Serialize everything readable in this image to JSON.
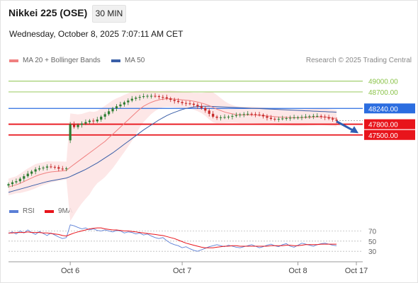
{
  "header": {
    "title": "Nikkei 225 (OSE)",
    "timeframe": "30 MIN",
    "datetime": "Wednesday, October 8, 2025 7:07:11 AM CET"
  },
  "legend": {
    "ma20": "MA 20 + Bollinger Bands",
    "ma50": "MA 50",
    "copyright": "Research © 2025 Trading Central",
    "rsi": "RSI",
    "ma9": "9MA"
  },
  "colors": {
    "ma20": "#f08080",
    "bollinger_fill": "#fde4e4",
    "ma50": "#3a5fa8",
    "resistance": "#8bc34a",
    "pivot": "#2b6de0",
    "support": "#e8141b",
    "rsi": "#5b7fd6",
    "ma9": "#e8141b",
    "candle_up": "#2e7d32",
    "candle_down": "#c62828"
  },
  "chart_data": [
    {
      "type": "candlestick",
      "title": "Nikkei 225 (OSE)",
      "timeframe": "30 MIN",
      "ylim": [
        45700,
        49350
      ],
      "x_ticks": [
        "Oct 6",
        "Oct 7",
        "Oct 8",
        "Oct 17"
      ],
      "levels": [
        {
          "value": 49000,
          "label": "49000.00",
          "kind": "resistance"
        },
        {
          "value": 48700,
          "label": "48700.00",
          "kind": "resistance"
        },
        {
          "value": 48240,
          "label": "48240.00",
          "kind": "pivot"
        },
        {
          "value": 47800,
          "label": "47800.00",
          "kind": "support"
        },
        {
          "value": 47500,
          "label": "47500.00",
          "kind": "support"
        }
      ],
      "forecast": {
        "direction": "down",
        "from": 47880,
        "to": 47550
      },
      "close": [
        46130,
        46180,
        46210,
        46280,
        46350,
        46420,
        46480,
        46540,
        46570,
        46590,
        46620,
        46610,
        46600,
        46560,
        46550,
        46570,
        47800,
        47720,
        47780,
        47820,
        47860,
        47900,
        47880,
        47930,
        48010,
        48080,
        48160,
        48240,
        48300,
        48350,
        48410,
        48460,
        48510,
        48540,
        48560,
        48580,
        48590,
        48590,
        48580,
        48560,
        48550,
        48520,
        48480,
        48450,
        48420,
        48390,
        48380,
        48370,
        48340,
        48300,
        48250,
        48180,
        48090,
        48010,
        47980,
        47990,
        48000,
        48010,
        48030,
        48050,
        48070,
        48080,
        48090,
        48080,
        48070,
        48060,
        48020,
        47980,
        47950,
        47940,
        47950,
        47960,
        47970,
        47980,
        47990,
        47990,
        48000,
        48010,
        48020,
        48030,
        48030,
        48010,
        47990,
        47960,
        47930,
        47900
      ],
      "ma20": [
        46050,
        46080,
        46110,
        46150,
        46200,
        46250,
        46300,
        46350,
        46390,
        46420,
        46450,
        46470,
        46480,
        46490,
        46500,
        46510,
        46600,
        46680,
        46760,
        46840,
        46920,
        47000,
        47080,
        47160,
        47240,
        47320,
        47420,
        47520,
        47620,
        47720,
        47820,
        47920,
        48020,
        48120,
        48220,
        48300,
        48360,
        48410,
        48450,
        48480,
        48500,
        48510,
        48510,
        48500,
        48490,
        48480,
        48470,
        48460,
        48440,
        48420,
        48390,
        48360,
        48320,
        48270,
        48220,
        48180,
        48140,
        48110,
        48090,
        48070,
        48060,
        48060,
        48060,
        48060,
        48055,
        48050,
        48040,
        48030,
        48020,
        48010,
        48000,
        47995,
        47990,
        47985,
        47980,
        47980,
        47985,
        47990,
        47995,
        48000,
        48005,
        48005,
        48000,
        47990,
        47975,
        47960
      ],
      "ma50": [
        45900,
        45930,
        45960,
        45990,
        46020,
        46050,
        46080,
        46110,
        46140,
        46170,
        46200,
        46220,
        46240,
        46260,
        46280,
        46300,
        46340,
        46390,
        46440,
        46490,
        46540,
        46600,
        46660,
        46720,
        46790,
        46860,
        46930,
        47000,
        47080,
        47160,
        47240,
        47320,
        47400,
        47480,
        47560,
        47640,
        47710,
        47780,
        47850,
        47920,
        47980,
        48040,
        48090,
        48130,
        48170,
        48210,
        48240,
        48260,
        48280,
        48290,
        48300,
        48300,
        48300,
        48295,
        48290,
        48285,
        48280,
        48275,
        48270,
        48265,
        48260,
        48255,
        48250,
        48245,
        48240,
        48235,
        48230,
        48225,
        48220,
        48215,
        48210,
        48205,
        48200,
        48195,
        48190,
        48185,
        48180,
        48175,
        48170,
        48165,
        48160,
        48155,
        48150,
        48145,
        48140,
        48135
      ]
    },
    {
      "type": "line",
      "title": "RSI",
      "ylim": [
        15,
        90
      ],
      "y_ticks": [
        70,
        50,
        30
      ],
      "series": [
        {
          "name": "RSI",
          "values": [
            65,
            68,
            64,
            70,
            66,
            72,
            67,
            63,
            69,
            65,
            61,
            66,
            62,
            58,
            55,
            57,
            82,
            80,
            77,
            74,
            76,
            72,
            74,
            71,
            70,
            72,
            70,
            68,
            71,
            70,
            66,
            68,
            67,
            64,
            66,
            62,
            64,
            60,
            57,
            55,
            57,
            51,
            46,
            43,
            41,
            37,
            39,
            35,
            32,
            30,
            33,
            36,
            39,
            41,
            43,
            41,
            39,
            42,
            40,
            38,
            37,
            39,
            41,
            43,
            40,
            37,
            39,
            42,
            44,
            41,
            39,
            43,
            45,
            40,
            38,
            42,
            46,
            44,
            42,
            40,
            43,
            45,
            46,
            44,
            42,
            41
          ]
        },
        {
          "name": "9MA",
          "values": [
            66,
            66,
            67,
            67,
            67,
            68,
            67,
            67,
            67,
            66,
            66,
            65,
            64,
            63,
            61,
            60,
            63,
            66,
            68,
            70,
            72,
            74,
            75,
            76,
            76,
            74,
            73,
            72,
            72,
            71,
            70,
            70,
            69,
            68,
            67,
            66,
            65,
            64,
            63,
            62,
            61,
            59,
            57,
            55,
            52,
            49,
            46,
            44,
            42,
            40,
            38,
            37,
            37,
            37,
            38,
            39,
            40,
            40,
            41,
            41,
            40,
            40,
            40,
            40,
            40,
            40,
            40,
            40,
            41,
            41,
            41,
            41,
            42,
            42,
            41,
            41,
            42,
            43,
            43,
            43,
            43,
            44,
            44,
            44,
            44,
            44
          ]
        }
      ]
    }
  ]
}
